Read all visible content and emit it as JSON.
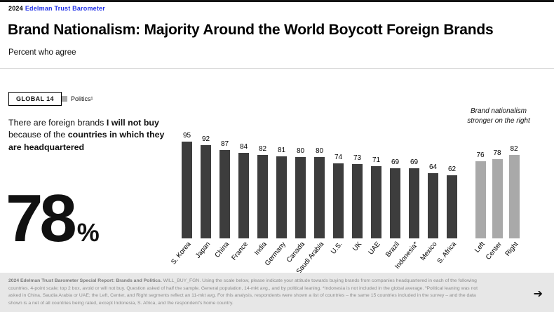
{
  "header": {
    "year": "2024",
    "brand": "Edelman Trust Barometer",
    "title": "Brand Nationalism: Majority Around the World Boycott Foreign Brands",
    "subtitle": "Percent who agree"
  },
  "controls": {
    "scope_badge": "GLOBAL 14",
    "legend_politics": "Politics¹"
  },
  "statement": {
    "pre": "There are foreign brands ",
    "bold1": "I will not buy",
    "mid": " because of the ",
    "bold2": "countries in which they are headquartered",
    "big_value": "78",
    "big_unit": "%"
  },
  "annotation": {
    "line1": "Brand nationalism",
    "line2": "stronger on the right"
  },
  "colors": {
    "brand_blue": "#2030e8",
    "bar_dark": "#3d3d3d",
    "bar_politics_gray": "#a9a9a9"
  },
  "chart_data": {
    "type": "bar",
    "title": "Percent who agree: There are foreign brands I will not buy because of the countries in which they are headquartered",
    "categories": [
      "S. Korea",
      "Japan",
      "China",
      "France",
      "India",
      "Germany",
      "Canada",
      "Saudi Arabia",
      "U.S.",
      "UK",
      "UAE",
      "Brazil",
      "Indonesia*",
      "Mexico",
      "S. Africa"
    ],
    "values": [
      95,
      92,
      87,
      84,
      82,
      81,
      80,
      80,
      74,
      73,
      71,
      69,
      69,
      64,
      62
    ],
    "global_average": 78,
    "politics_categories": [
      "Left",
      "Center",
      "Right"
    ],
    "politics_values": [
      76,
      78,
      82
    ],
    "ylim": [
      0,
      100
    ],
    "bar_color": "#3d3d3d",
    "politics_color": "#a9a9a9",
    "grid": false,
    "legend_position": "top-left"
  },
  "footer": {
    "bold": "2024 Edelman Trust Barometer Special Report: Brands and Politics.",
    "text": " WILL_BUY_FGN. Using the scale below, please indicate your attitude towards buying brands from companies headquartered in each of the following countries. 4-point scale; top 2 box, avoid or will not buy. Question asked of half the sample. General population, 14-mkt avg., and by political leaning. *Indonesia is not included in the global average. ¹Political leaning was not asked in China, Saudia Arabia or UAE; the Left, Center, and Right segments reflect an 11-mkt avg. For this analysis, respondents were shown a list of countries – the same 15 countries included in the survey – and the data shown is a net of all countries being rated, except Indonesia, S. Africa, and the respondent's home country.",
    "next_arrow": "➔"
  }
}
